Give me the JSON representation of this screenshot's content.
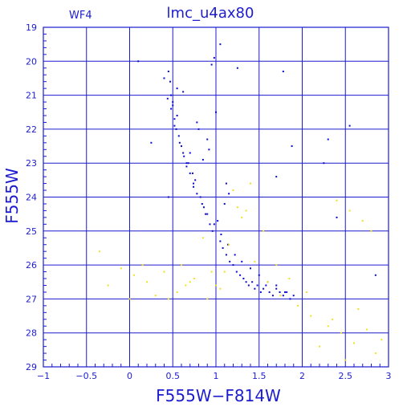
{
  "chart_data": {
    "type": "scatter",
    "title": "lmc_u4ax80",
    "panel_label": "WF4",
    "xlabel": "F555W−F814W",
    "ylabel": "F555W",
    "xlim": [
      -1,
      3
    ],
    "ylim": [
      29,
      19
    ],
    "y_inverted": true,
    "grid": true,
    "x_ticks": [
      -1,
      -0.5,
      0,
      0.5,
      1,
      1.5,
      2,
      2.5,
      3
    ],
    "x_tick_labels": [
      "−1",
      "−0.5",
      "0",
      "0.5",
      "1",
      "1.5",
      "2",
      "2.5",
      "3"
    ],
    "y_ticks": [
      19,
      20,
      21,
      22,
      23,
      24,
      25,
      26,
      27,
      28,
      29
    ],
    "y_tick_labels": [
      "19",
      "20",
      "21",
      "22",
      "23",
      "24",
      "25",
      "26",
      "27",
      "28",
      "29"
    ],
    "colors": {
      "frame": "#1c1ccf",
      "grid": "#1c1ccf",
      "main_points": "#0a0ad0",
      "faint_points": "#f0e020"
    },
    "series": [
      {
        "color": "#0a0ad0",
        "x": [
          0.1,
          0.45,
          0.55,
          0.5,
          0.48,
          0.62,
          0.95,
          0.98,
          1.05,
          1.25,
          1.78,
          2.3,
          2.55,
          1.88,
          2.25,
          1.7,
          2.4,
          0.25,
          0.45,
          0.78,
          0.85,
          1.12,
          1.1,
          1.15,
          1.02,
          2.85,
          0.8,
          0.9,
          0.92,
          1.0,
          0.7,
          0.68,
          0.73,
          0.76,
          0.5,
          0.55,
          0.52,
          0.47,
          0.57,
          0.6,
          0.63,
          0.66,
          0.74,
          0.82,
          0.86,
          0.88,
          0.93,
          0.96,
          1.05,
          1.08,
          1.12,
          1.16,
          1.2,
          1.24,
          1.28,
          1.32,
          1.35,
          1.38,
          1.42,
          1.45,
          1.48,
          1.52,
          1.55,
          1.58,
          1.62,
          1.66,
          1.7,
          1.74,
          1.78,
          1.82,
          1.86,
          1.9,
          0.4,
          0.44,
          0.48,
          0.52,
          0.54,
          0.58,
          0.62,
          0.66,
          0.7,
          0.74,
          0.78,
          0.84,
          0.9,
          0.98,
          1.06,
          1.14,
          1.22,
          1.3,
          1.4,
          1.5,
          1.6,
          1.7,
          1.8
        ],
        "y": [
          20.0,
          20.3,
          20.8,
          21.2,
          21.0,
          20.9,
          20.1,
          19.9,
          19.5,
          20.2,
          20.3,
          22.3,
          21.9,
          22.5,
          23.0,
          23.4,
          24.6,
          22.4,
          24.0,
          21.8,
          22.9,
          23.6,
          24.2,
          23.9,
          24.7,
          26.3,
          22.0,
          22.3,
          22.6,
          21.5,
          22.7,
          23.0,
          23.3,
          23.5,
          21.3,
          21.6,
          21.9,
          20.6,
          22.2,
          22.5,
          22.8,
          23.1,
          23.7,
          24.0,
          24.3,
          24.5,
          24.8,
          25.0,
          25.3,
          25.5,
          25.7,
          25.9,
          26.0,
          26.2,
          26.3,
          26.4,
          26.5,
          26.6,
          26.5,
          26.7,
          26.6,
          26.8,
          26.7,
          26.6,
          26.8,
          26.9,
          26.7,
          26.8,
          26.9,
          26.8,
          27.0,
          26.9,
          20.5,
          21.1,
          21.4,
          21.7,
          22.0,
          22.4,
          22.7,
          23.0,
          23.3,
          23.6,
          23.9,
          24.2,
          24.5,
          24.8,
          25.1,
          25.4,
          25.7,
          25.9,
          26.1,
          26.3,
          26.5,
          26.6,
          26.8
        ]
      },
      {
        "color": "#f0e020",
        "x": [
          -0.35,
          -0.25,
          0.05,
          0.2,
          0.4,
          0.55,
          0.6,
          0.75,
          0.9,
          1.0,
          1.1,
          1.15,
          1.3,
          1.45,
          1.6,
          1.75,
          1.95,
          2.1,
          2.3,
          2.45,
          2.6,
          2.75,
          2.85,
          2.92,
          2.2,
          2.35,
          2.5,
          2.65,
          0.3,
          0.15,
          0.0,
          -0.1,
          0.7,
          0.85,
          1.25,
          1.4,
          1.55,
          1.7,
          1.85,
          2.05,
          2.7,
          2.8,
          1.2,
          1.35,
          0.95,
          1.05,
          2.4,
          2.55,
          0.45,
          0.65
        ],
        "y": [
          25.6,
          26.6,
          26.3,
          26.5,
          26.2,
          26.8,
          26.0,
          26.4,
          27.0,
          26.6,
          26.2,
          25.4,
          24.6,
          25.9,
          26.5,
          26.9,
          27.2,
          27.5,
          27.8,
          28.0,
          28.3,
          27.9,
          28.6,
          28.2,
          28.4,
          27.6,
          28.8,
          27.3,
          26.9,
          26.0,
          27.0,
          26.1,
          26.5,
          25.2,
          24.3,
          23.6,
          25.0,
          26.0,
          26.4,
          26.8,
          24.7,
          25.0,
          23.8,
          24.4,
          26.2,
          26.7,
          24.1,
          24.4,
          27.0,
          26.6
        ]
      }
    ]
  }
}
